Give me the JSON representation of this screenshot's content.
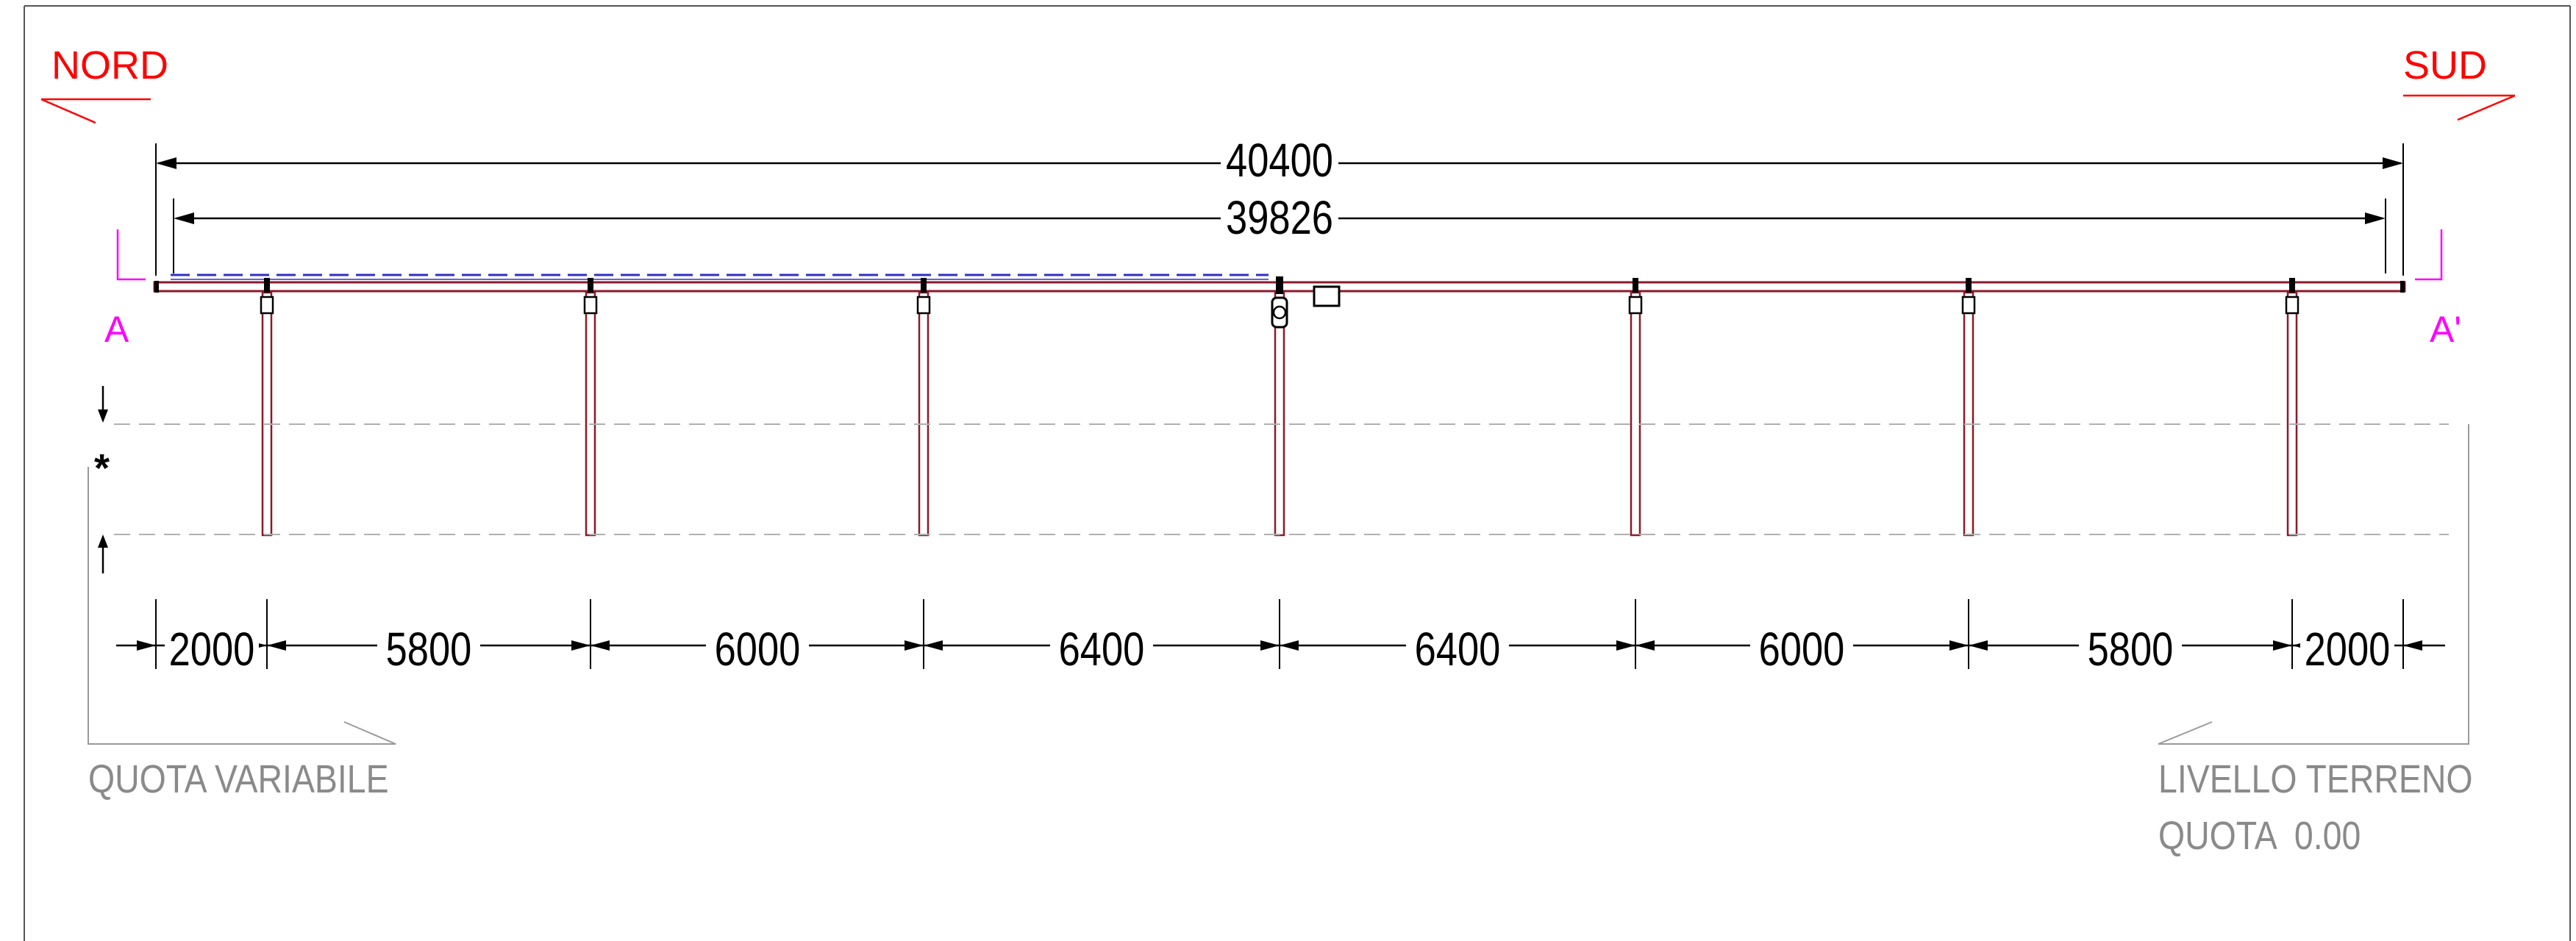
{
  "labels": {
    "north": "NORD",
    "south": "SUD",
    "section_start": "A",
    "section_end": "A'",
    "asterisk": "*",
    "variable_height": "QUOTA VARIABILE",
    "ground_level": "LIVELLO TERRENO",
    "ground_elevation": "QUOTA  0.00"
  },
  "dimensions": {
    "overall": "40400",
    "rail": "39826",
    "spans": [
      "2000",
      "5800",
      "6000",
      "6400",
      "6400",
      "6000",
      "5800",
      "2000"
    ]
  },
  "colors": {
    "annotation_red": "#ff0000",
    "section_magenta": "#ff00ff",
    "dimension_black": "#000000",
    "structure_dark_red": "#8b1a2b",
    "panel_blue": "#3030c0",
    "guide_gray": "#9a9a9a",
    "frame_gray": "#555555"
  }
}
